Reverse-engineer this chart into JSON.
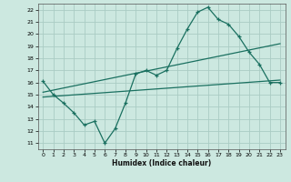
{
  "xlabel": "Humidex (Indice chaleur)",
  "ylabel": "",
  "bg_color": "#cce8e0",
  "grid_color": "#aaccc4",
  "line_color": "#1a7060",
  "xlim": [
    -0.5,
    23.5
  ],
  "ylim": [
    10.5,
    22.5
  ],
  "xticks": [
    0,
    1,
    2,
    3,
    4,
    5,
    6,
    7,
    8,
    9,
    10,
    11,
    12,
    13,
    14,
    15,
    16,
    17,
    18,
    19,
    20,
    21,
    22,
    23
  ],
  "yticks": [
    11,
    12,
    13,
    14,
    15,
    16,
    17,
    18,
    19,
    20,
    21,
    22
  ],
  "curve_main": {
    "x": [
      0,
      1,
      2,
      3,
      4,
      5,
      6,
      7,
      8,
      9,
      10,
      11,
      12,
      13,
      14,
      15,
      16,
      17,
      18,
      19,
      20,
      21,
      22,
      23
    ],
    "y": [
      16.1,
      15.0,
      14.3,
      13.5,
      12.5,
      12.8,
      11.0,
      12.2,
      14.3,
      16.7,
      17.0,
      16.6,
      17.0,
      18.8,
      20.4,
      21.8,
      22.2,
      21.2,
      20.8,
      19.8,
      18.5,
      17.5,
      16.0,
      16.0
    ]
  },
  "line_upper": {
    "x": [
      0,
      23
    ],
    "y": [
      15.2,
      19.2
    ]
  },
  "line_lower": {
    "x": [
      0,
      23
    ],
    "y": [
      14.8,
      16.2
    ]
  }
}
